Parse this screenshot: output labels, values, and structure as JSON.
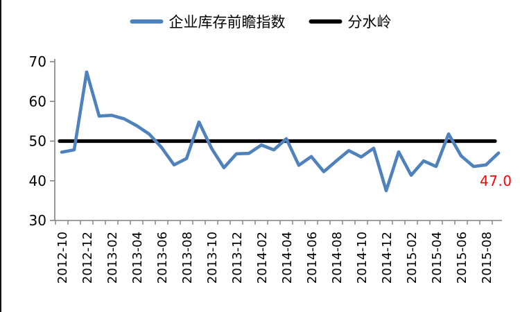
{
  "legend": {
    "series1_label": "企业库存前瞻指数",
    "series2_label": "分水岭"
  },
  "annotation": {
    "text": "47.0",
    "color": "#FF0000"
  },
  "colors": {
    "series1": "#4F81BD",
    "series2": "#000000",
    "axis": "#808080",
    "tick_label": "#000000",
    "background": "#FFFFFF"
  },
  "chart_data": {
    "type": "line",
    "title": "",
    "xlabel": "",
    "ylabel": "",
    "ylim": [
      30,
      70
    ],
    "yticks": [
      30,
      40,
      50,
      60,
      70
    ],
    "grid": false,
    "legend_position": "top",
    "x": [
      "2012-10",
      "2012-11",
      "2012-12",
      "2013-01",
      "2013-02",
      "2013-03",
      "2013-04",
      "2013-05",
      "2013-06",
      "2013-07",
      "2013-08",
      "2013-09",
      "2013-10",
      "2013-11",
      "2013-12",
      "2014-01",
      "2014-02",
      "2014-03",
      "2014-04",
      "2014-05",
      "2014-06",
      "2014-07",
      "2014-08",
      "2014-09",
      "2014-10",
      "2014-11",
      "2014-12",
      "2015-01",
      "2015-02",
      "2015-03",
      "2015-04",
      "2015-05",
      "2015-06",
      "2015-07",
      "2015-08",
      "2015-09"
    ],
    "xtick_labels_shown": [
      "2012-10",
      "2012-12",
      "2013-02",
      "2013-04",
      "2013-06",
      "2013-08",
      "2013-10",
      "2013-12",
      "2014-02",
      "2014-04",
      "2014-06",
      "2014-08",
      "2014-10",
      "2014-12",
      "2015-02",
      "2015-04",
      "2015-06",
      "2015-08"
    ],
    "series": [
      {
        "name": "企业库存前瞻指数",
        "color": "#4F81BD",
        "values": [
          47.2,
          47.8,
          67.4,
          56.3,
          56.5,
          55.6,
          53.9,
          51.8,
          48.4,
          44.0,
          45.6,
          54.8,
          48.2,
          43.3,
          46.8,
          46.9,
          49.0,
          47.8,
          50.6,
          43.9,
          46.1,
          42.3,
          45.0,
          47.6,
          46.0,
          48.2,
          37.5,
          47.3,
          41.4,
          45.0,
          43.6,
          51.8,
          46.3,
          43.6,
          44.0,
          47.0
        ]
      },
      {
        "name": "分水岭",
        "color": "#000000",
        "constant_value": 50
      }
    ],
    "annotation": {
      "text": "47.0",
      "x": "2015-09",
      "value": 47.0
    }
  }
}
